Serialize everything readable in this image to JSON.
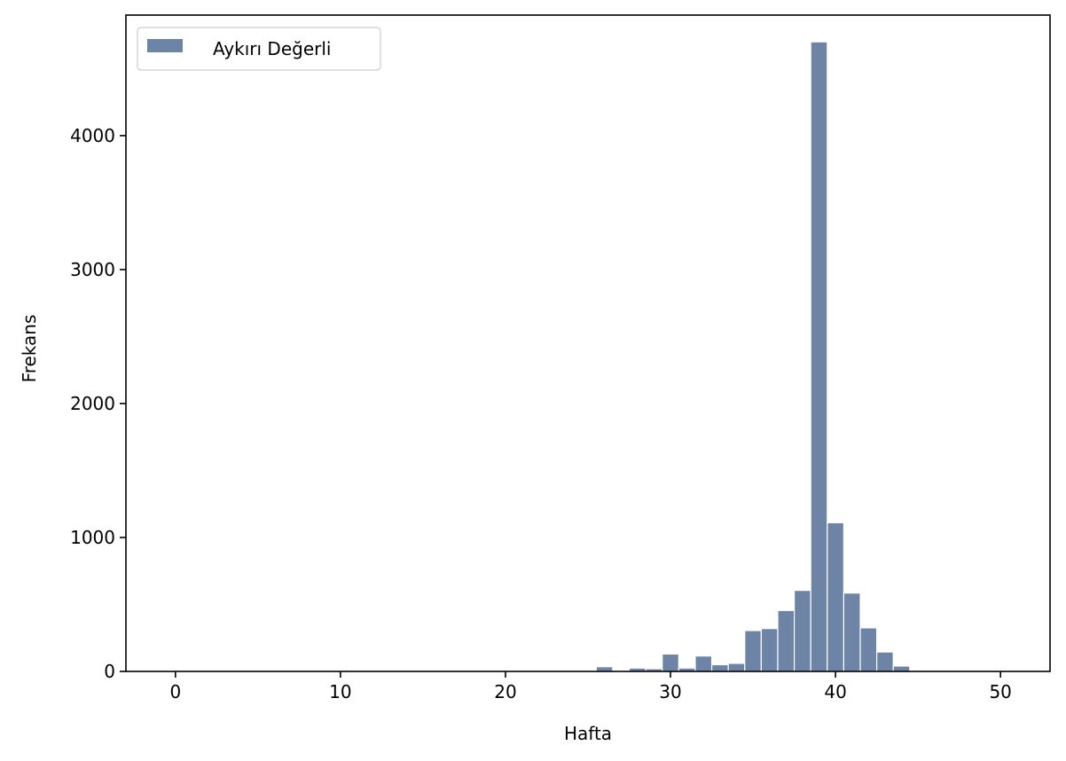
{
  "chart_data": {
    "type": "bar",
    "xlabel": "Hafta",
    "ylabel": "Frekans",
    "xlim": [
      -3,
      53
    ],
    "ylim": [
      0,
      4900
    ],
    "xticks": [
      0,
      10,
      20,
      30,
      40,
      50
    ],
    "yticks": [
      0,
      1000,
      2000,
      3000,
      4000
    ],
    "grid": false,
    "legend_position": "top-left",
    "bar_color": "#6d84a6",
    "bin_width": 1,
    "series": [
      {
        "name": "Aykırı Değerli",
        "x": [
          0,
          1,
          2,
          3,
          4,
          5,
          6,
          7,
          8,
          9,
          10,
          11,
          12,
          13,
          14,
          15,
          16,
          17,
          18,
          19,
          20,
          21,
          22,
          23,
          24,
          25,
          26,
          27,
          28,
          29,
          30,
          31,
          32,
          33,
          34,
          35,
          36,
          37,
          38,
          39,
          40,
          41,
          42,
          43,
          44,
          45,
          46,
          47,
          48,
          49,
          50
        ],
        "values": [
          2,
          1,
          1,
          1,
          1,
          1,
          1,
          1,
          1,
          1,
          2,
          1,
          1,
          1,
          1,
          1,
          1,
          1,
          1,
          1,
          2,
          1,
          1,
          1,
          2,
          3,
          35,
          5,
          25,
          20,
          130,
          25,
          115,
          50,
          60,
          305,
          320,
          455,
          605,
          4700,
          1110,
          585,
          325,
          145,
          40,
          4,
          2,
          2,
          2,
          2,
          2
        ]
      }
    ]
  }
}
